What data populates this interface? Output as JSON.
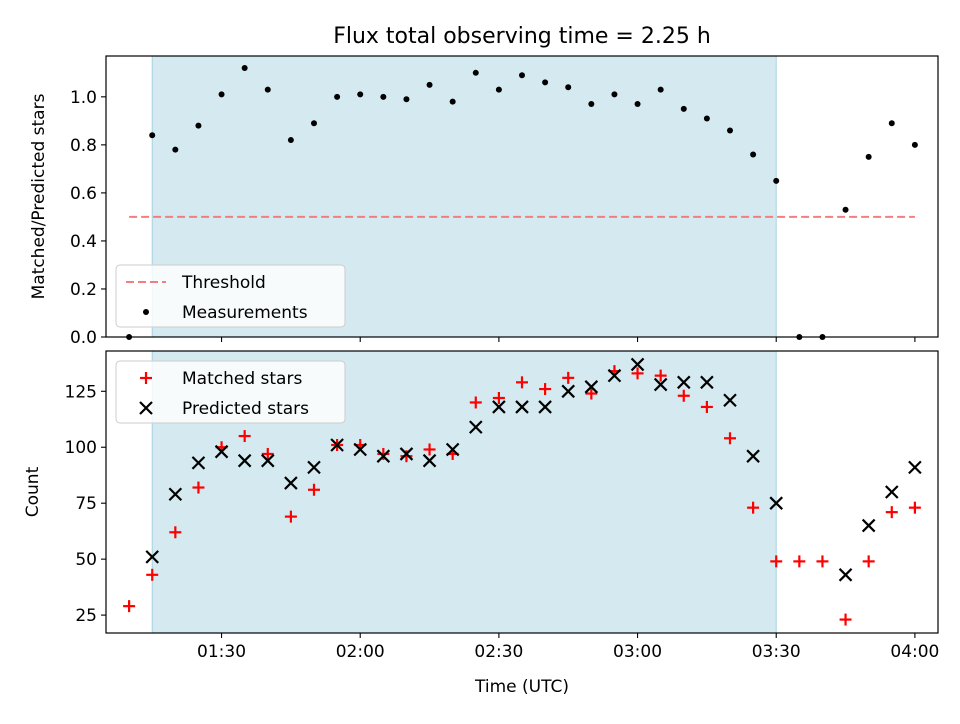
{
  "chart_data": [
    {
      "type": "scatter",
      "title": "Flux total observing time = 2.25 h",
      "ylabel": "Matched/Predicted stars",
      "xlabel": "",
      "xlim": [
        "01:05",
        "04:05"
      ],
      "ylim": [
        0,
        1.17
      ],
      "y_ticks": [
        "0.0",
        "0.2",
        "0.4",
        "0.6",
        "0.8",
        "1.0"
      ],
      "x_ticks": [
        "01:30",
        "02:00",
        "02:30",
        "03:00",
        "03:30",
        "04:00"
      ],
      "shaded_span": [
        "01:15",
        "03:30"
      ],
      "shade_color": "#d4eaf0",
      "legend_position": "lower-left",
      "series": [
        {
          "name": "Threshold",
          "kind": "dashed-line",
          "color": "#f08080",
          "x": [
            "01:10",
            "04:00"
          ],
          "y": [
            0.5,
            0.5
          ]
        },
        {
          "name": "Measurements",
          "kind": "dot",
          "color": "#000000",
          "x": [
            "01:10",
            "01:15",
            "01:20",
            "01:25",
            "01:30",
            "01:35",
            "01:40",
            "01:45",
            "01:50",
            "01:55",
            "02:00",
            "02:05",
            "02:10",
            "02:15",
            "02:20",
            "02:25",
            "02:30",
            "02:35",
            "02:40",
            "02:45",
            "02:50",
            "02:55",
            "03:00",
            "03:05",
            "03:10",
            "03:15",
            "03:20",
            "03:25",
            "03:30",
            "03:35",
            "03:40",
            "03:45",
            "03:50",
            "03:55",
            "04:00"
          ],
          "y": [
            0.0,
            0.84,
            0.78,
            0.88,
            1.01,
            1.12,
            1.03,
            0.82,
            0.89,
            1.0,
            1.01,
            1.0,
            0.99,
            1.05,
            0.98,
            1.1,
            1.03,
            1.09,
            1.06,
            1.04,
            0.97,
            1.01,
            0.97,
            1.03,
            0.95,
            0.91,
            0.86,
            0.76,
            0.65,
            0.0,
            0.0,
            0.53,
            0.75,
            0.89,
            0.8
          ]
        }
      ]
    },
    {
      "type": "scatter",
      "title": "",
      "ylabel": "Count",
      "xlabel": "Time (UTC)",
      "xlim": [
        "01:05",
        "04:05"
      ],
      "ylim": [
        17,
        143
      ],
      "y_ticks": [
        "25",
        "50",
        "75",
        "100",
        "125"
      ],
      "x_ticks": [
        "01:30",
        "02:00",
        "02:30",
        "03:00",
        "03:30",
        "04:00"
      ],
      "shaded_span": [
        "01:15",
        "03:30"
      ],
      "shade_color": "#d4eaf0",
      "legend_position": "upper-left",
      "series": [
        {
          "name": "Matched stars",
          "kind": "plus",
          "color": "#ff0000",
          "x": [
            "01:10",
            "01:15",
            "01:20",
            "01:25",
            "01:30",
            "01:35",
            "01:40",
            "01:45",
            "01:50",
            "01:55",
            "02:00",
            "02:05",
            "02:10",
            "02:15",
            "02:20",
            "02:25",
            "02:30",
            "02:35",
            "02:40",
            "02:45",
            "02:50",
            "02:55",
            "03:00",
            "03:05",
            "03:10",
            "03:15",
            "03:20",
            "03:25",
            "03:30",
            "03:35",
            "03:40",
            "03:45",
            "03:50",
            "03:55",
            "04:00"
          ],
          "y": [
            29,
            43,
            62,
            82,
            100,
            105,
            97,
            69,
            81,
            101,
            101,
            97,
            96,
            99,
            97,
            120,
            122,
            129,
            126,
            131,
            124,
            134,
            133,
            132,
            123,
            118,
            104,
            73,
            49,
            49,
            49,
            23,
            49,
            71,
            73
          ]
        },
        {
          "name": "Predicted stars",
          "kind": "cross",
          "color": "#000000",
          "x": [
            "01:15",
            "01:20",
            "01:25",
            "01:30",
            "01:35",
            "01:40",
            "01:45",
            "01:50",
            "01:55",
            "02:00",
            "02:05",
            "02:10",
            "02:15",
            "02:20",
            "02:25",
            "02:30",
            "02:35",
            "02:40",
            "02:45",
            "02:50",
            "02:55",
            "03:00",
            "03:05",
            "03:10",
            "03:15",
            "03:20",
            "03:25",
            "03:30",
            "03:45",
            "03:50",
            "03:55",
            "04:00"
          ],
          "y": [
            51,
            79,
            93,
            98,
            94,
            94,
            84,
            91,
            101,
            99,
            96,
            97,
            94,
            99,
            109,
            118,
            118,
            118,
            125,
            127,
            132,
            137,
            128,
            129,
            129,
            121,
            96,
            75,
            43,
            65,
            80,
            91
          ]
        }
      ]
    }
  ]
}
